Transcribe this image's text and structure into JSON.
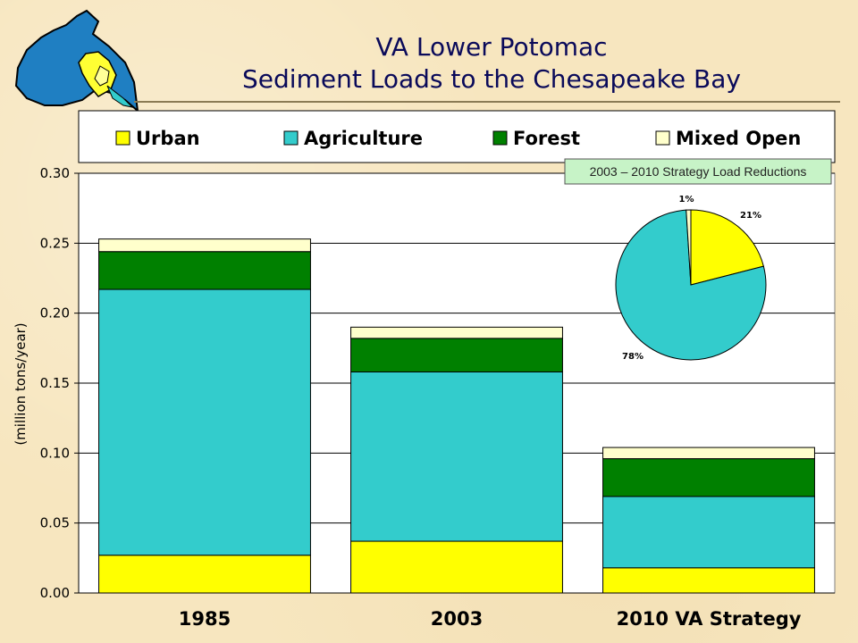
{
  "header": {
    "title_line1": "VA Lower Potomac",
    "title_line2": "Sediment Loads to the Chesapeake Bay"
  },
  "legend": {
    "items": [
      {
        "label": "Urban",
        "color": "#ffff00"
      },
      {
        "label": "Agriculture",
        "color": "#33cccc"
      },
      {
        "label": "Forest",
        "color": "#008000"
      },
      {
        "label": "Mixed Open",
        "color": "#ffffcc"
      }
    ]
  },
  "inset": {
    "label": "2003 – 2010 Strategy Load Reductions"
  },
  "chart_data": [
    {
      "type": "bar",
      "stacked": true,
      "categories": [
        "1985",
        "2003",
        "2010 VA Strategy"
      ],
      "series": [
        {
          "name": "Urban",
          "color": "#ffff00",
          "values": [
            0.027,
            0.037,
            0.018
          ]
        },
        {
          "name": "Agriculture",
          "color": "#33cccc",
          "values": [
            0.19,
            0.121,
            0.051
          ]
        },
        {
          "name": "Forest",
          "color": "#008000",
          "values": [
            0.027,
            0.024,
            0.027
          ]
        },
        {
          "name": "Mixed Open",
          "color": "#ffffcc",
          "values": [
            0.009,
            0.008,
            0.008
          ]
        }
      ],
      "ylabel": "(million tons/year)",
      "ylim": [
        0,
        0.3
      ],
      "yticks": [
        "0.00",
        "0.05",
        "0.10",
        "0.15",
        "0.20",
        "0.25",
        "0.30"
      ],
      "grid": true,
      "legend_position": "top"
    },
    {
      "type": "pie",
      "title": "2003 – 2010 Strategy Load Reductions",
      "slices": [
        {
          "label": "21%",
          "value": 21,
          "color": "#ffff00"
        },
        {
          "label": "78%",
          "value": 78,
          "color": "#33cccc"
        },
        {
          "label": "1%",
          "value": 1,
          "color": "#ffffcc"
        }
      ]
    }
  ]
}
